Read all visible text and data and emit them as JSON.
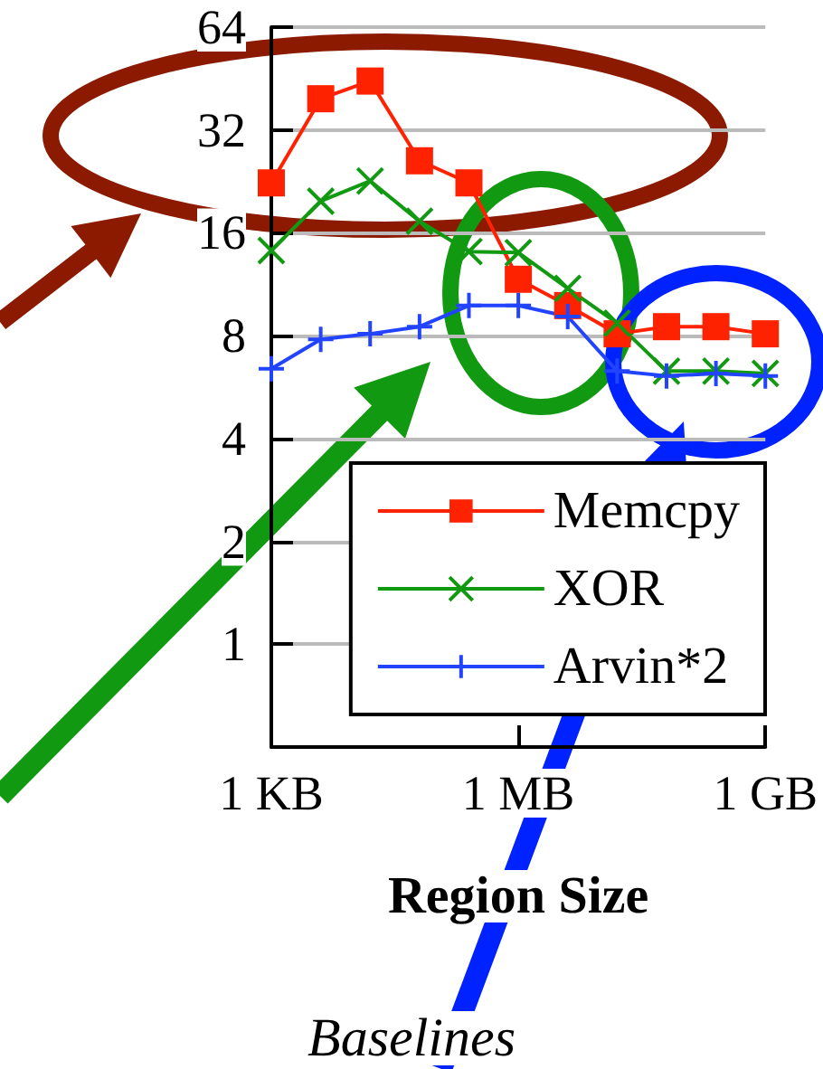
{
  "chart_data": {
    "type": "line",
    "title": "Baselines",
    "xlabel": "Region Size",
    "categories": [
      "1 KB",
      null,
      null,
      null,
      null,
      "1 MB",
      null,
      null,
      null,
      null,
      "1 GB"
    ],
    "series": [
      {
        "name": "Memcpy",
        "color": "#ff2200",
        "marker": "square",
        "values": [
          22.4,
          39.5,
          44.5,
          26,
          22.4,
          11.7,
          9.8,
          8.1,
          8.5,
          8.5,
          8.1
        ]
      },
      {
        "name": "XOR",
        "color": "#119911",
        "marker": "cross",
        "values": [
          14.2,
          19.8,
          22.7,
          17.3,
          14.1,
          14,
          11,
          8.7,
          6.3,
          6.3,
          6.2
        ]
      },
      {
        "name": "Arvin*2",
        "color": "#2244ff",
        "marker": "plus",
        "values": [
          6.4,
          7.8,
          8.1,
          8.5,
          9.8,
          9.8,
          9.1,
          6.3,
          6.1,
          6.2,
          6.1
        ]
      }
    ],
    "log": "y",
    "ylim": [
      0.5,
      64
    ],
    "yticks": [
      1,
      2,
      4,
      8,
      16,
      32,
      64
    ],
    "grid": "y",
    "legend": "bottom right",
    "line_style": "solid"
  }
}
